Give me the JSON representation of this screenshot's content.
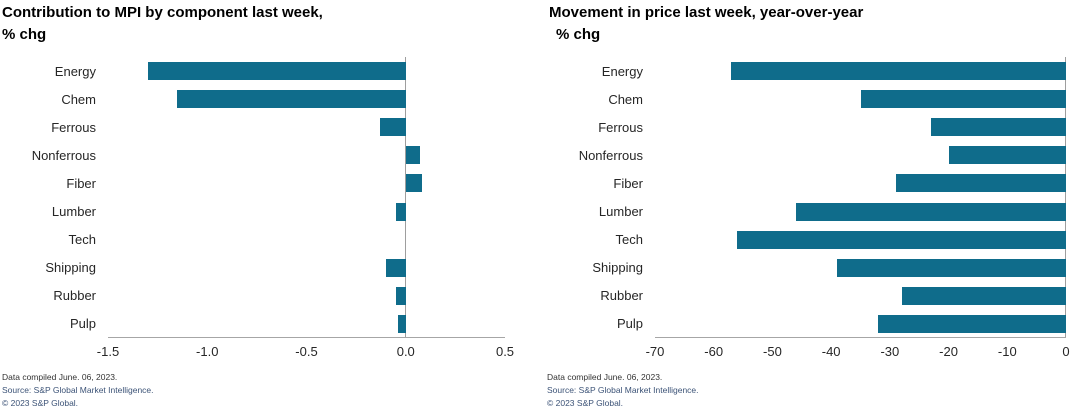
{
  "colors": {
    "bar": "#0f6c8b",
    "axis_line": "#a6a6a6",
    "zero_line": "#9e9e9e",
    "title_text": "#000000",
    "label_text": "#262626",
    "footer_text": "#333333",
    "footer_blue": "#3c5377"
  },
  "footer": {
    "line1": "Data compiled June. 06, 2023.",
    "line2": "Source: S&P Global Market Intelligence.",
    "line3": "© 2023 S&P Global."
  },
  "chart_data": [
    {
      "type": "bar",
      "orientation": "horizontal",
      "title_line1": "Contribution to MPI by component last week,",
      "title_line2": "% chg",
      "categories": [
        "Energy",
        "Chem",
        "Ferrous",
        "Nonferrous",
        "Fiber",
        "Lumber",
        "Tech",
        "Shipping",
        "Rubber",
        "Pulp"
      ],
      "values": [
        -1.3,
        -1.15,
        -0.13,
        0.07,
        0.08,
        -0.05,
        0.0,
        -0.1,
        -0.05,
        -0.04
      ],
      "xlabel": "",
      "ylabel": "",
      "xlim": [
        -1.5,
        0.5
      ],
      "ticks": [
        -1.5,
        -1.0,
        -0.5,
        0.0,
        0.5
      ],
      "tick_labels": [
        "-1.5",
        "-1.0",
        "-0.5",
        "0.0",
        "0.5"
      ],
      "grid": false,
      "legend": "none"
    },
    {
      "type": "bar",
      "orientation": "horizontal",
      "title_line1": "Movement in price last week, year-over-year",
      "title_line2": "% chg",
      "categories": [
        "Energy",
        "Chem",
        "Ferrous",
        "Nonferrous",
        "Fiber",
        "Lumber",
        "Tech",
        "Shipping",
        "Rubber",
        "Pulp"
      ],
      "values": [
        -57,
        -35,
        -23,
        -20,
        -29,
        -46,
        -56,
        -39,
        -28,
        -32
      ],
      "xlabel": "",
      "ylabel": "",
      "xlim": [
        -70,
        0
      ],
      "ticks": [
        -70,
        -60,
        -50,
        -40,
        -30,
        -20,
        -10,
        0
      ],
      "tick_labels": [
        "-70",
        "-60",
        "-50",
        "-40",
        "-30",
        "-20",
        "-10",
        "0"
      ],
      "grid": false,
      "legend": "none"
    }
  ]
}
